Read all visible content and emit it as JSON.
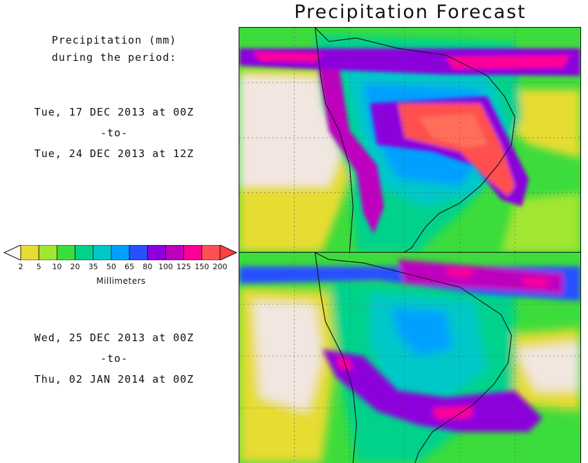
{
  "title": "Precipitation Forecast",
  "subtitle": [
    "Precipitation (mm)",
    "during the period:"
  ],
  "period1": {
    "start": "Tue, 17 DEC 2013 at 00Z",
    "sep": "-to-",
    "end": "Tue, 24 DEC 2013 at 12Z"
  },
  "period2": {
    "start": "Wed, 25 DEC 2013 at 00Z",
    "sep": "-to-",
    "end": "Thu, 02 JAN 2014 at 00Z"
  },
  "legend": {
    "title": "Millimeters",
    "labels": [
      "2",
      "5",
      "10",
      "20",
      "35",
      "50",
      "65",
      "80",
      "100",
      "125",
      "150",
      "200"
    ],
    "colors": [
      "#e6dc32",
      "#a0e632",
      "#3cdc3c",
      "#00d28c",
      "#00c8c8",
      "#00a0ff",
      "#2850ff",
      "#8c00dc",
      "#be00be",
      "#ff0096",
      "#ff5050",
      "#ff6e5a"
    ],
    "below_color": "#fff8f0",
    "above_color": "#ff4040"
  },
  "map_colors": {
    "land_dry": "#f2e6e0",
    "ocean_base": "#e6dc32",
    "coast": "#111111"
  }
}
